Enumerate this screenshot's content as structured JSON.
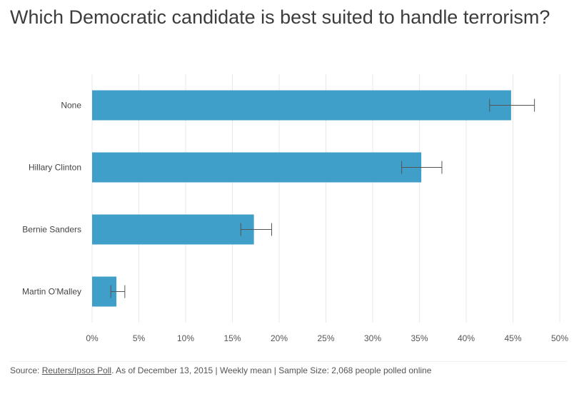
{
  "chart_data": {
    "type": "bar",
    "orientation": "horizontal",
    "title": "Which Democratic candidate is best suited to handle terrorism?",
    "categories": [
      "None",
      "Hillary Clinton",
      "Bernie Sanders",
      "Martin O'Malley"
    ],
    "values": [
      44.8,
      35.2,
      17.3,
      2.6
    ],
    "error_low": [
      42.5,
      33.1,
      15.9,
      2.0
    ],
    "error_high": [
      47.3,
      37.4,
      19.2,
      3.5
    ],
    "xlim": [
      0,
      50
    ],
    "xticks": [
      "0%",
      "5%",
      "10%",
      "15%",
      "20%",
      "25%",
      "30%",
      "35%",
      "40%",
      "45%",
      "50%"
    ],
    "grid": true,
    "legend": "none",
    "bar_color": "#409fc9"
  },
  "footer": {
    "prefix": "Source: ",
    "link_text": "Reuters/Ipsos Poll",
    "suffix": ". As of December 13, 2015 | Weekly mean | Sample Size: 2,068 people polled online"
  }
}
